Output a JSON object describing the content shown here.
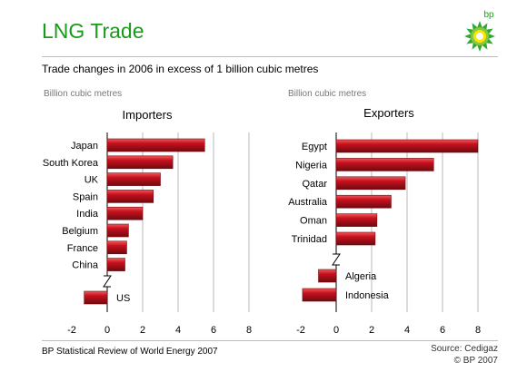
{
  "title": "LNG Trade",
  "subtitle": "Trade changes in 2006 in excess of 1 billion cubic metres",
  "logo_text": "bp",
  "footer": {
    "left": "BP Statistical Review of World Energy 2007",
    "source": "Source: Cedigaz",
    "copyright": "© BP 2007"
  },
  "colors": {
    "title": "#1a9a1a",
    "bar": "#c8101e",
    "bar_highlight": "#f05a5a",
    "bar_shadow": "#6e0a10"
  },
  "chart_data": [
    {
      "type": "bar",
      "orientation": "horizontal",
      "title": "Importers",
      "unit_label": "Billion cubic metres",
      "xlim": [
        -2,
        8
      ],
      "xticks": [
        -2,
        0,
        2,
        4,
        6,
        8
      ],
      "grid": true,
      "axis_break": true,
      "categories": [
        "Japan",
        "South Korea",
        "UK",
        "Spain",
        "India",
        "Belgium",
        "France",
        "China",
        "US"
      ],
      "values": [
        5.5,
        3.7,
        3.0,
        2.6,
        2.0,
        1.2,
        1.1,
        1.0,
        -1.3
      ]
    },
    {
      "type": "bar",
      "orientation": "horizontal",
      "title": "Exporters",
      "unit_label": "Billion cubic metres",
      "xlim": [
        -2,
        8
      ],
      "xticks": [
        -2,
        0,
        2,
        4,
        6,
        8
      ],
      "grid": true,
      "axis_break": true,
      "categories": [
        "Egypt",
        "Nigeria",
        "Qatar",
        "Australia",
        "Oman",
        "Trinidad",
        "Algeria",
        "Indonesia"
      ],
      "values": [
        8.0,
        5.5,
        3.9,
        3.1,
        2.3,
        2.2,
        -1.0,
        -1.9
      ]
    }
  ]
}
